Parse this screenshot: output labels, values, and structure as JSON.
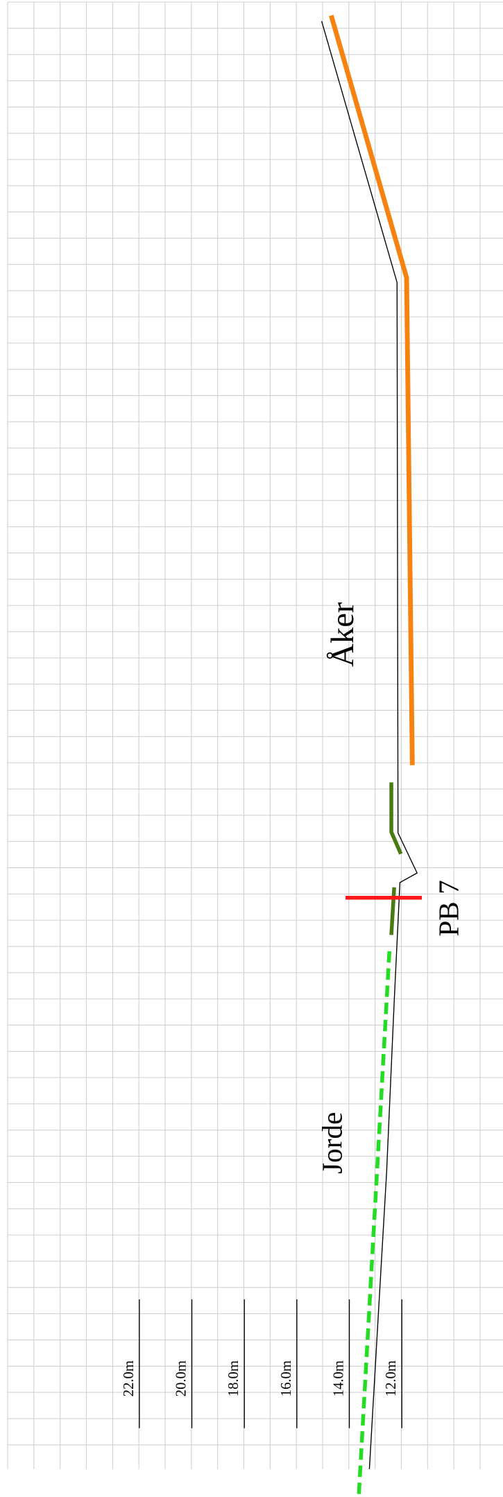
{
  "labels": {
    "field": "Åker",
    "soil": "Jorde",
    "borehole": "PB 7"
  },
  "elevations": [
    "22.0m",
    "20.0m",
    "18.0m",
    "16.0m",
    "14.0m",
    "12.0m"
  ]
}
